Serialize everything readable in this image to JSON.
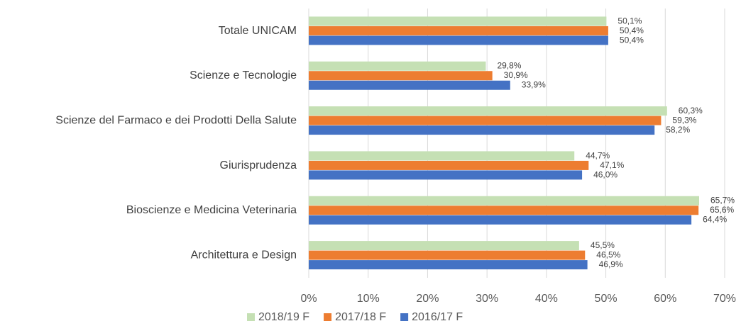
{
  "chart_data": {
    "type": "hbar",
    "categories": [
      "Totale UNICAM",
      "Scienze e Tecnologie",
      "Scienze del Farmaco e dei Prodotti Della Salute",
      "Giurisprudenza",
      "Bioscienze e Medicina Veterinaria",
      "Architettura e Design"
    ],
    "series": [
      {
        "name": "2018/19 F",
        "color": "#c5e0b4",
        "values": [
          50.1,
          29.8,
          60.3,
          44.7,
          65.7,
          45.5
        ],
        "value_labels": [
          "50,1%",
          "29,8%",
          "60,3%",
          "44,7%",
          "65,7%",
          "45,5%"
        ]
      },
      {
        "name": "2017/18 F",
        "color": "#ed7d31",
        "values": [
          50.4,
          30.9,
          59.3,
          47.1,
          65.6,
          46.5
        ],
        "value_labels": [
          "50,4%",
          "30,9%",
          "59,3%",
          "47,1%",
          "65,6%",
          "46,5%"
        ]
      },
      {
        "name": "2016/17 F",
        "color": "#4472c4",
        "values": [
          50.4,
          33.9,
          58.2,
          46.0,
          64.4,
          46.9
        ],
        "value_labels": [
          "50,4%",
          "33,9%",
          "58,2%",
          "46,0%",
          "64,4%",
          "46,9%"
        ]
      }
    ],
    "xlim": [
      0,
      70
    ],
    "xticks": [
      {
        "value": 0,
        "label": "0%"
      },
      {
        "value": 10,
        "label": "10%"
      },
      {
        "value": 20,
        "label": "20%"
      },
      {
        "value": 30,
        "label": "30%"
      },
      {
        "value": 40,
        "label": "40%"
      },
      {
        "value": 50,
        "label": "50%"
      },
      {
        "value": 60,
        "label": "60%"
      },
      {
        "value": 70,
        "label": "70%"
      }
    ],
    "grid": true,
    "legend": "bottom"
  }
}
